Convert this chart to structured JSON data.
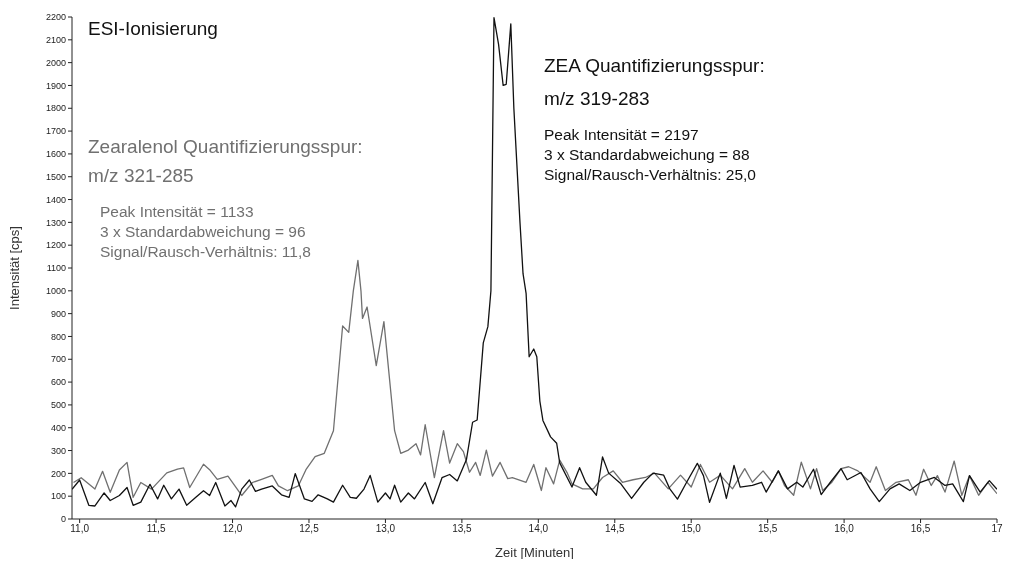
{
  "chart_data": {
    "type": "line",
    "title": "ESI-Ionisierung",
    "xlabel": "Zeit [Minuten]",
    "ylabel": "Intensität [cps]",
    "xlim": [
      10.95,
      17.0
    ],
    "xticks": [
      {
        "value": 11,
        "label": "11,0"
      },
      {
        "value": 11.5,
        "label": "11,5"
      },
      {
        "value": 12,
        "label": "12,0"
      },
      {
        "value": 12.5,
        "label": "12,5"
      },
      {
        "value": 13,
        "label": "13,0"
      },
      {
        "value": 13.5,
        "label": "13,5"
      },
      {
        "value": 14,
        "label": "14,0"
      },
      {
        "value": 14.5,
        "label": "14,5"
      },
      {
        "value": 15,
        "label": "15,0"
      },
      {
        "value": 15.5,
        "label": "15,5"
      },
      {
        "value": 16,
        "label": "16,0"
      },
      {
        "value": 16.5,
        "label": "16,5"
      },
      {
        "value": 17,
        "label": "17"
      }
    ],
    "ylim": [
      0,
      2200
    ],
    "yticks": [
      0,
      100,
      200,
      300,
      400,
      500,
      600,
      700,
      800,
      900,
      1000,
      1100,
      1200,
      1300,
      1400,
      1500,
      1600,
      1700,
      1800,
      1900,
      2000,
      2100,
      2200
    ],
    "marker": "none",
    "line_style": "solid",
    "series": [
      {
        "color": "#707070",
        "x": [
          10.96,
          11.01,
          11.1,
          11.15,
          11.2,
          11.26,
          11.31,
          11.35,
          11.4,
          11.47,
          11.57,
          11.64,
          11.68,
          11.72,
          11.81,
          11.85,
          11.9,
          11.97,
          12.06,
          12.13,
          12.19,
          12.26,
          12.3,
          12.36,
          12.43,
          12.48,
          12.54,
          12.6,
          12.66,
          12.72,
          12.76,
          12.79,
          12.82,
          12.84,
          12.85,
          12.88,
          12.94,
          12.99,
          13.06,
          13.1,
          13.15,
          13.2,
          13.23,
          13.26,
          13.32,
          13.38,
          13.42,
          13.47,
          13.51,
          13.55,
          13.59,
          13.62,
          13.66,
          13.7,
          13.75,
          13.8,
          13.83,
          13.92,
          13.97,
          14.02,
          14.05,
          14.1,
          14.14,
          14.19,
          14.22,
          14.29,
          14.36,
          14.42,
          14.49,
          14.55,
          14.62,
          14.7,
          14.76,
          14.85,
          14.93,
          15.0,
          15.06,
          15.12,
          15.19,
          15.27,
          15.35,
          15.4,
          15.47,
          15.53,
          15.57,
          15.61,
          15.67,
          15.72,
          15.78,
          15.82,
          15.86,
          15.92,
          15.98,
          16.03,
          16.09,
          16.17,
          16.21,
          16.27,
          16.34,
          16.42,
          16.47,
          16.52,
          16.57,
          16.61,
          16.66,
          16.72,
          16.77,
          16.82,
          16.88,
          16.94,
          17.0
        ],
        "values": [
          160,
          181,
          131,
          209,
          117,
          215,
          248,
          95,
          160,
          131,
          202,
          219,
          224,
          138,
          240,
          216,
          174,
          188,
          103,
          160,
          174,
          191,
          145,
          124,
          145,
          216,
          273,
          288,
          387,
          846,
          818,
          1000,
          1133,
          1000,
          879,
          929,
          672,
          865,
          387,
          288,
          302,
          330,
          281,
          413,
          181,
          387,
          245,
          330,
          295,
          205,
          248,
          191,
          302,
          188,
          248,
          177,
          181,
          161,
          239,
          125,
          225,
          154,
          258,
          201,
          154,
          132,
          132,
          182,
          211,
          161,
          172,
          182,
          201,
          132,
          192,
          140,
          239,
          161,
          192,
          132,
          221,
          161,
          211,
          161,
          211,
          147,
          104,
          249,
          132,
          221,
          125,
          161,
          221,
          229,
          211,
          161,
          229,
          125,
          161,
          172,
          104,
          218,
          147,
          190,
          118,
          254,
          104,
          190,
          104,
          161,
          111
        ]
      },
      {
        "color": "#111111",
        "x": [
          10.95,
          11.0,
          11.06,
          11.1,
          11.16,
          11.2,
          11.26,
          11.31,
          11.35,
          11.4,
          11.46,
          11.51,
          11.55,
          11.6,
          11.65,
          11.7,
          11.76,
          11.81,
          11.85,
          11.89,
          11.95,
          11.99,
          12.02,
          12.06,
          12.11,
          12.15,
          12.19,
          12.26,
          12.32,
          12.37,
          12.41,
          12.47,
          12.52,
          12.56,
          12.62,
          12.66,
          12.72,
          12.77,
          12.81,
          12.86,
          12.9,
          12.95,
          13.0,
          13.03,
          13.06,
          13.1,
          13.15,
          13.19,
          13.26,
          13.31,
          13.37,
          13.42,
          13.47,
          13.53,
          13.57,
          13.6,
          13.64,
          13.67,
          13.69,
          13.71,
          13.74,
          13.77,
          13.79,
          13.82,
          13.84,
          13.88,
          13.9,
          13.92,
          13.94,
          13.97,
          13.99,
          14.01,
          14.03,
          14.08,
          14.12,
          14.14,
          14.22,
          14.27,
          14.31,
          14.38,
          14.42,
          14.46,
          14.54,
          14.61,
          14.69,
          14.75,
          14.82,
          14.86,
          14.91,
          14.97,
          15.04,
          15.08,
          15.12,
          15.19,
          15.23,
          15.28,
          15.32,
          15.4,
          15.46,
          15.49,
          15.57,
          15.63,
          15.69,
          15.73,
          15.8,
          15.85,
          15.91,
          15.98,
          16.02,
          16.11,
          16.17,
          16.23,
          16.3,
          16.36,
          16.43,
          16.5,
          16.59,
          16.66,
          16.71,
          16.78,
          16.82,
          16.89,
          16.95,
          17.0
        ],
        "values": [
          130,
          171,
          60,
          57,
          114,
          81,
          103,
          138,
          60,
          74,
          152,
          88,
          148,
          88,
          131,
          60,
          95,
          124,
          103,
          160,
          57,
          81,
          53,
          131,
          171,
          121,
          131,
          145,
          106,
          95,
          199,
          88,
          77,
          106,
          88,
          74,
          148,
          95,
          91,
          131,
          191,
          74,
          114,
          88,
          148,
          74,
          114,
          88,
          160,
          67,
          181,
          195,
          167,
          261,
          424,
          434,
          772,
          843,
          1000,
          2197,
          2080,
          1900,
          1905,
          2170,
          1800,
          1300,
          1075,
          989,
          711,
          745,
          711,
          517,
          432,
          360,
          332,
          246,
          140,
          225,
          161,
          104,
          272,
          201,
          154,
          90,
          161,
          201,
          192,
          132,
          87,
          161,
          244,
          190,
          73,
          201,
          90,
          235,
          140,
          147,
          161,
          118,
          211,
          132,
          161,
          140,
          218,
          107,
          161,
          221,
          172,
          204,
          132,
          76,
          132,
          154,
          125,
          161,
          182,
          147,
          154,
          76,
          190,
          118,
          168,
          130
        ]
      }
    ],
    "annotations": [
      "Zearalenol Quantifizierungsspur:",
      "m/z 321-285",
      "Peak Intensität = 1133",
      "3 x Standardabweichung = 96",
      "Signal/Rausch-Verhältnis: 11,8",
      "ZEA Quantifizierungsspur:",
      "m/z 319-283",
      "Peak Intensität = 2197",
      "3 x Standardabweichung = 88",
      "Signal/Rausch-Verhältnis: 25,0"
    ]
  }
}
